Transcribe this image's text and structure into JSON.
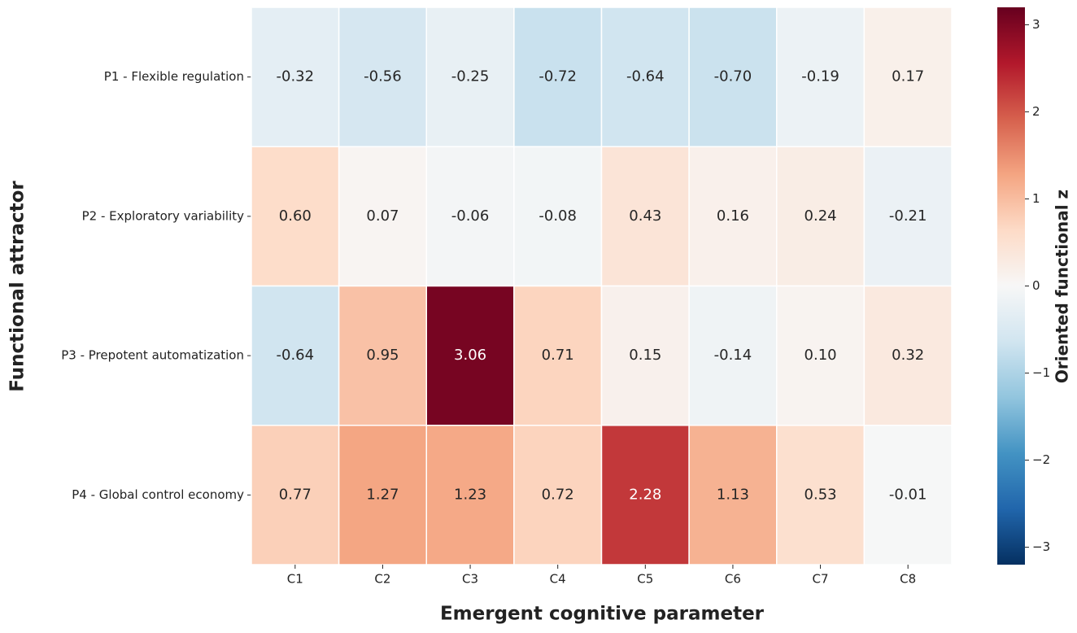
{
  "chart_data": {
    "type": "heatmap",
    "x_label": "Emergent cognitive parameter",
    "y_label": "Functional attractor",
    "colorbar_label": "Oriented functional z",
    "colormap": "RdBu_r",
    "categories": [
      "C1",
      "C2",
      "C3",
      "C4",
      "C5",
      "C6",
      "C7",
      "C8"
    ],
    "rows": [
      "P1 - Flexible regulation",
      "P2 - Exploratory variability",
      "P3 - Prepotent automatization",
      "P4 - Global control economy"
    ],
    "values": [
      [
        -0.32,
        -0.56,
        -0.25,
        -0.72,
        -0.64,
        -0.7,
        -0.19,
        0.17
      ],
      [
        0.6,
        0.07,
        -0.06,
        -0.08,
        0.43,
        0.16,
        0.24,
        -0.21
      ],
      [
        -0.64,
        0.95,
        3.06,
        0.71,
        0.15,
        -0.14,
        0.1,
        0.32
      ],
      [
        0.77,
        1.27,
        1.23,
        0.72,
        2.28,
        1.13,
        0.53,
        -0.01
      ]
    ],
    "value_labels": [
      [
        "-0.32",
        "-0.56",
        "-0.25",
        "-0.72",
        "-0.64",
        "-0.70",
        "-0.19",
        "0.17"
      ],
      [
        "0.60",
        "0.07",
        "-0.06",
        "-0.08",
        "0.43",
        "0.16",
        "0.24",
        "-0.21"
      ],
      [
        "-0.64",
        "0.95",
        "3.06",
        "0.71",
        "0.15",
        "-0.14",
        "0.10",
        "0.32"
      ],
      [
        "0.77",
        "1.27",
        "1.23",
        "0.72",
        "2.28",
        "1.13",
        "0.53",
        "-0.01"
      ]
    ],
    "zlim": [
      -3.2,
      3.2
    ],
    "zticks": [
      {
        "value": -3,
        "label": "−3"
      },
      {
        "value": -2,
        "label": "−2"
      },
      {
        "value": -1,
        "label": "−1"
      },
      0,
      1,
      2,
      3
    ]
  }
}
